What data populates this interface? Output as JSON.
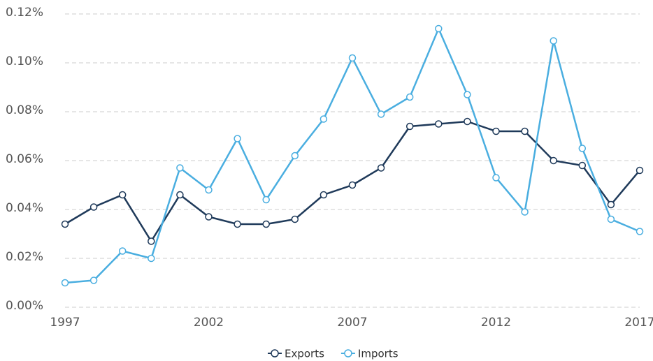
{
  "chart_data": {
    "type": "line",
    "x": [
      1997,
      1998,
      1999,
      2000,
      2001,
      2002,
      2003,
      2004,
      2005,
      2006,
      2007,
      2008,
      2009,
      2010,
      2011,
      2012,
      2013,
      2014,
      2015,
      2016,
      2017
    ],
    "series": [
      {
        "name": "Exports",
        "color": "#1f3a5a",
        "values": [
          0.034,
          0.041,
          0.046,
          0.027,
          0.046,
          0.037,
          0.034,
          0.034,
          0.036,
          0.046,
          0.05,
          0.057,
          0.074,
          0.075,
          0.076,
          0.072,
          0.072,
          0.06,
          0.058,
          0.042,
          0.056
        ]
      },
      {
        "name": "Imports",
        "color": "#4aaee0",
        "values": [
          0.01,
          0.011,
          0.023,
          0.02,
          0.057,
          0.048,
          0.069,
          0.044,
          0.062,
          0.077,
          0.102,
          0.079,
          0.086,
          0.114,
          0.087,
          0.053,
          0.039,
          0.109,
          0.065,
          0.036,
          0.031
        ]
      }
    ],
    "xlim": [
      1997,
      2017
    ],
    "xticks": [
      1997,
      2002,
      2007,
      2012,
      2017
    ],
    "ylim": [
      0,
      0.12
    ],
    "yticks": [
      {
        "value": 0,
        "label": "0.00%"
      },
      {
        "value": 0.02,
        "label": "0.02%"
      },
      {
        "value": 0.04,
        "label": "0.04%"
      },
      {
        "value": 0.06,
        "label": "0.06%"
      },
      {
        "value": 0.08,
        "label": "0.08%"
      },
      {
        "value": 0.1,
        "label": "0.10%"
      },
      {
        "value": 0.12,
        "label": "0.12%"
      }
    ],
    "grid": true,
    "legend": "bottom"
  }
}
